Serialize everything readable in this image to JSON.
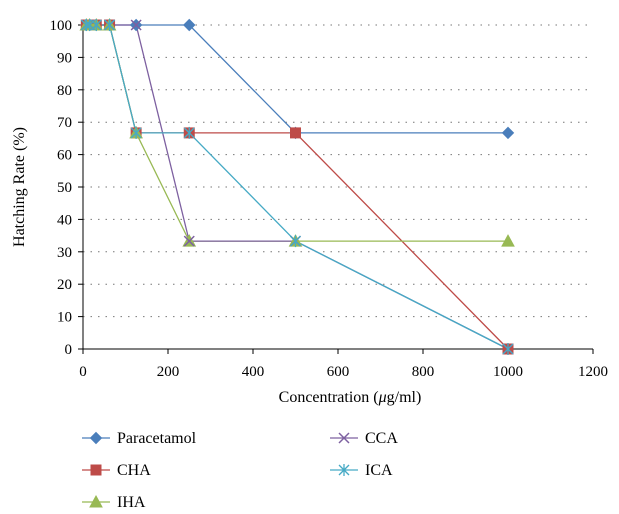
{
  "chart_data": {
    "type": "line",
    "title": "",
    "xlabel": "Concentration (",
    "xlabel_mu": "μ",
    "xlabel_tail": "g/ml)",
    "ylabel": "Hatching Rate (%)",
    "xlim": [
      0,
      1200
    ],
    "ylim": [
      0,
      100
    ],
    "xticks": [
      0,
      200,
      400,
      600,
      800,
      1000,
      1200
    ],
    "yticks": [
      0,
      10,
      20,
      30,
      40,
      50,
      60,
      70,
      80,
      90,
      100
    ],
    "grid": "horizontal-dotted",
    "legend_placement": "bottom",
    "series": [
      {
        "name": "Paracetamol",
        "color": "#4a7ebb",
        "marker": "diamond",
        "x": [
          7.8,
          15.6,
          31.25,
          62.5,
          125,
          250,
          500,
          1000
        ],
        "y": [
          100,
          100,
          100,
          100,
          100,
          100,
          66.7,
          66.7
        ]
      },
      {
        "name": "CHA",
        "color": "#be4b48",
        "marker": "square",
        "x": [
          7.8,
          15.6,
          31.25,
          62.5,
          125,
          250,
          500,
          1000
        ],
        "y": [
          100,
          100,
          100,
          100,
          66.7,
          66.7,
          66.7,
          0
        ]
      },
      {
        "name": "IHA",
        "color": "#98b954",
        "marker": "triangle",
        "x": [
          7.8,
          15.6,
          31.25,
          62.5,
          125,
          250,
          500,
          1000
        ],
        "y": [
          100,
          100,
          100,
          100,
          66.7,
          33.3,
          33.3,
          33.3
        ]
      },
      {
        "name": "CCA",
        "color": "#7d60a0",
        "marker": "x",
        "x": [
          7.8,
          15.6,
          31.25,
          62.5,
          125,
          250,
          500,
          1000
        ],
        "y": [
          100,
          100,
          100,
          100,
          100,
          33.3,
          33.3,
          0
        ]
      },
      {
        "name": "ICA",
        "color": "#46aac5",
        "marker": "star",
        "x": [
          7.8,
          15.6,
          31.25,
          62.5,
          125,
          250,
          500,
          1000
        ],
        "y": [
          100,
          100,
          100,
          100,
          66.7,
          66.7,
          33.3,
          0
        ]
      }
    ]
  }
}
